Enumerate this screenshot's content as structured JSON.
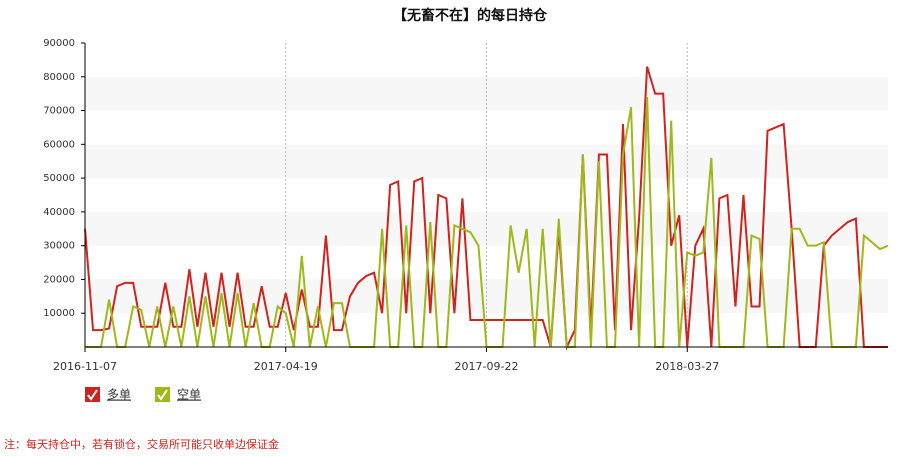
{
  "chart_data": {
    "type": "line",
    "title": "【无畜不在】的每日持仓",
    "note": "注：每天持仓中，若有锁仓，交易所可能只收单边保证金",
    "categories": [
      "2016-11-07",
      null,
      null,
      null,
      null,
      null,
      null,
      null,
      null,
      null,
      null,
      null,
      null,
      null,
      null,
      null,
      null,
      null,
      null,
      null,
      null,
      null,
      null,
      null,
      null,
      "2017-04-19",
      null,
      null,
      null,
      null,
      null,
      null,
      null,
      null,
      null,
      null,
      null,
      null,
      null,
      null,
      null,
      null,
      null,
      null,
      null,
      null,
      null,
      null,
      null,
      null,
      "2017-09-22",
      null,
      null,
      null,
      null,
      null,
      null,
      null,
      null,
      null,
      null,
      null,
      null,
      null,
      null,
      null,
      null,
      null,
      null,
      null,
      null,
      null,
      null,
      null,
      null,
      "2018-03-27",
      null,
      null,
      null,
      null,
      null,
      null,
      null,
      null,
      null,
      null,
      null,
      null,
      null,
      null,
      null,
      null,
      null,
      null,
      null,
      null,
      null,
      null,
      null,
      null,
      null
    ],
    "series": [
      {
        "name": "多单",
        "color": "#d0231d",
        "values": [
          35000,
          5000,
          5000,
          5500,
          18000,
          19000,
          19000,
          6000,
          6000,
          6000,
          19000,
          6000,
          6000,
          23000,
          6000,
          22000,
          6000,
          22000,
          6000,
          22000,
          6000,
          6000,
          18000,
          6000,
          6000,
          16000,
          5000,
          17000,
          6000,
          6000,
          33000,
          5000,
          5000,
          15000,
          19000,
          21000,
          22000,
          10000,
          48000,
          49000,
          10000,
          49000,
          50000,
          10000,
          45000,
          44000,
          10000,
          44000,
          8000,
          8000,
          8000,
          8000,
          8000,
          8000,
          8000,
          8000,
          8000,
          8000,
          0,
          35000,
          0,
          5000,
          57000,
          5000,
          57000,
          57000,
          5000,
          66000,
          5000,
          38000,
          83000,
          75000,
          75000,
          30000,
          39000,
          0,
          30000,
          35000,
          0,
          44000,
          45000,
          12000,
          45000,
          12000,
          12000,
          64000,
          65000,
          66000,
          35000,
          0,
          0,
          0,
          30000,
          33000,
          35000,
          37000,
          38000,
          0,
          0,
          0,
          0
        ]
      },
      {
        "name": "空单",
        "color": "#9fb81a",
        "values": [
          0,
          0,
          0,
          14000,
          0,
          0,
          12000,
          11000,
          0,
          12000,
          0,
          12000,
          0,
          15000,
          0,
          15000,
          0,
          16000,
          0,
          16000,
          0,
          13000,
          0,
          0,
          12000,
          10000,
          0,
          27000,
          0,
          12000,
          0,
          13000,
          13000,
          0,
          0,
          0,
          0,
          35000,
          0,
          0,
          36000,
          0,
          0,
          37000,
          0,
          0,
          36000,
          35000,
          34000,
          30000,
          0,
          0,
          0,
          36000,
          22000,
          35000,
          0,
          35000,
          0,
          38000,
          0,
          0,
          57000,
          0,
          55000,
          0,
          0,
          57000,
          71000,
          0,
          74000,
          0,
          0,
          67000,
          0,
          28000,
          27000,
          28000,
          56000,
          0,
          0,
          0,
          0,
          33000,
          32000,
          0,
          0,
          0,
          35000,
          35000,
          30000,
          30000,
          31000,
          0,
          0,
          0,
          0,
          33000,
          31000,
          29000,
          30000
        ]
      }
    ],
    "ylim": [
      0,
      90000
    ],
    "yticks": [
      10000,
      20000,
      30000,
      40000,
      50000,
      60000,
      70000,
      80000,
      90000
    ],
    "grid": true
  }
}
